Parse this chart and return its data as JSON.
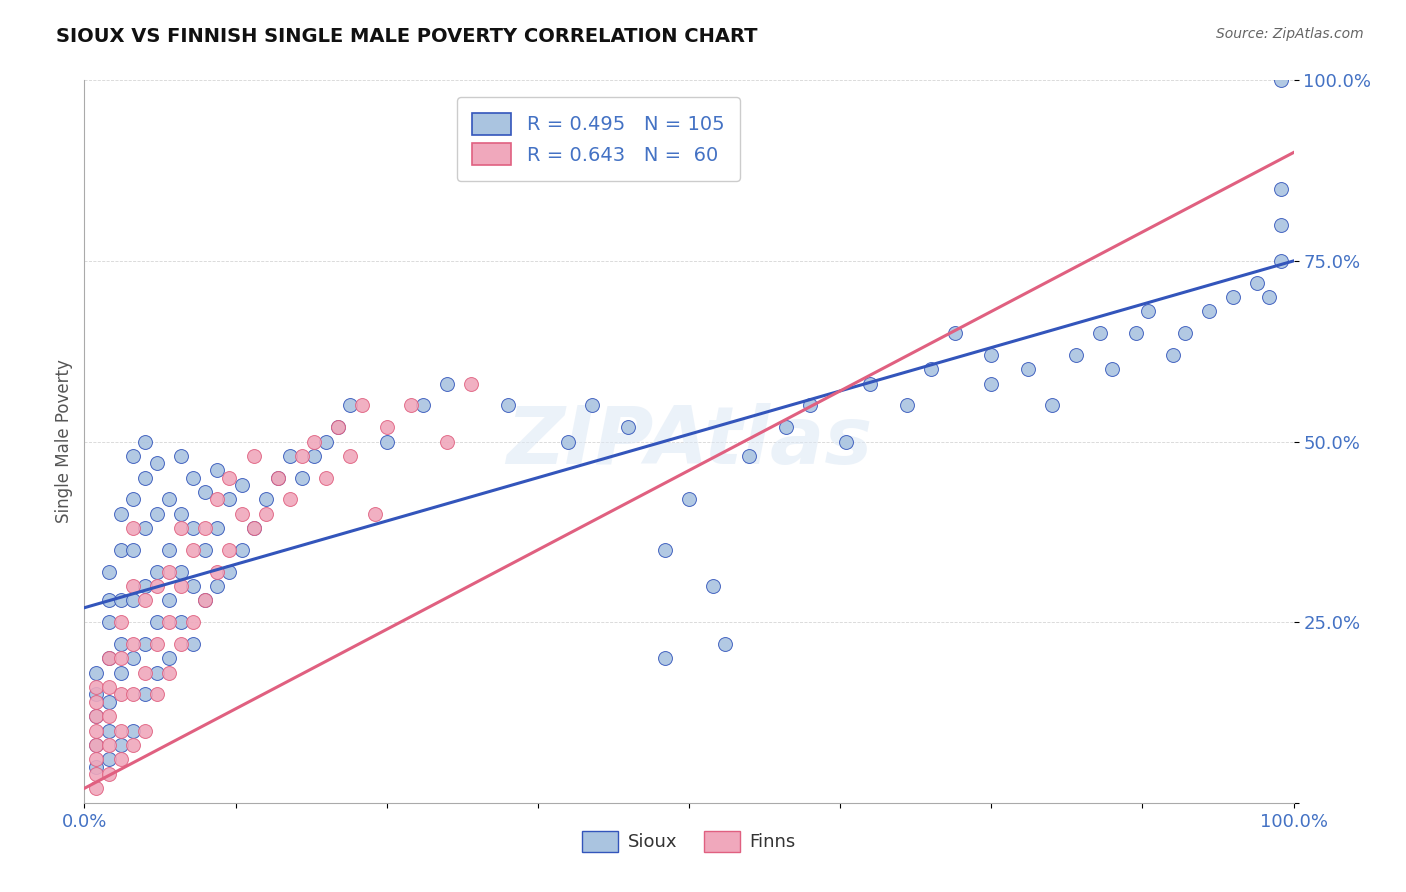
{
  "title": "SIOUX VS FINNISH SINGLE MALE POVERTY CORRELATION CHART",
  "source": "Source: ZipAtlas.com",
  "ylabel": "Single Male Poverty",
  "sioux_color": "#aac4e0",
  "finns_color": "#f0a8bc",
  "sioux_line_color": "#3355bb",
  "finns_line_color": "#e06080",
  "background_color": "#ffffff",
  "axis_label_color": "#4472c4",
  "legend_sioux_R": "R = 0.495",
  "legend_sioux_N": "N = 105",
  "legend_finns_R": "R = 0.643",
  "legend_finns_N": "N =  60",
  "sioux_points": [
    [
      0.01,
      0.05
    ],
    [
      0.01,
      0.08
    ],
    [
      0.01,
      0.12
    ],
    [
      0.01,
      0.15
    ],
    [
      0.01,
      0.18
    ],
    [
      0.02,
      0.06
    ],
    [
      0.02,
      0.1
    ],
    [
      0.02,
      0.14
    ],
    [
      0.02,
      0.2
    ],
    [
      0.02,
      0.25
    ],
    [
      0.02,
      0.28
    ],
    [
      0.02,
      0.32
    ],
    [
      0.03,
      0.08
    ],
    [
      0.03,
      0.18
    ],
    [
      0.03,
      0.22
    ],
    [
      0.03,
      0.28
    ],
    [
      0.03,
      0.35
    ],
    [
      0.03,
      0.4
    ],
    [
      0.04,
      0.1
    ],
    [
      0.04,
      0.2
    ],
    [
      0.04,
      0.28
    ],
    [
      0.04,
      0.35
    ],
    [
      0.04,
      0.42
    ],
    [
      0.04,
      0.48
    ],
    [
      0.05,
      0.15
    ],
    [
      0.05,
      0.22
    ],
    [
      0.05,
      0.3
    ],
    [
      0.05,
      0.38
    ],
    [
      0.05,
      0.45
    ],
    [
      0.05,
      0.5
    ],
    [
      0.06,
      0.18
    ],
    [
      0.06,
      0.25
    ],
    [
      0.06,
      0.32
    ],
    [
      0.06,
      0.4
    ],
    [
      0.06,
      0.47
    ],
    [
      0.07,
      0.2
    ],
    [
      0.07,
      0.28
    ],
    [
      0.07,
      0.35
    ],
    [
      0.07,
      0.42
    ],
    [
      0.08,
      0.25
    ],
    [
      0.08,
      0.32
    ],
    [
      0.08,
      0.4
    ],
    [
      0.08,
      0.48
    ],
    [
      0.09,
      0.22
    ],
    [
      0.09,
      0.3
    ],
    [
      0.09,
      0.38
    ],
    [
      0.09,
      0.45
    ],
    [
      0.1,
      0.28
    ],
    [
      0.1,
      0.35
    ],
    [
      0.1,
      0.43
    ],
    [
      0.11,
      0.3
    ],
    [
      0.11,
      0.38
    ],
    [
      0.11,
      0.46
    ],
    [
      0.12,
      0.32
    ],
    [
      0.12,
      0.42
    ],
    [
      0.13,
      0.35
    ],
    [
      0.13,
      0.44
    ],
    [
      0.14,
      0.38
    ],
    [
      0.15,
      0.42
    ],
    [
      0.16,
      0.45
    ],
    [
      0.17,
      0.48
    ],
    [
      0.18,
      0.45
    ],
    [
      0.19,
      0.48
    ],
    [
      0.2,
      0.5
    ],
    [
      0.21,
      0.52
    ],
    [
      0.22,
      0.55
    ],
    [
      0.25,
      0.5
    ],
    [
      0.28,
      0.55
    ],
    [
      0.3,
      0.58
    ],
    [
      0.35,
      0.55
    ],
    [
      0.4,
      0.5
    ],
    [
      0.42,
      0.55
    ],
    [
      0.45,
      0.52
    ],
    [
      0.48,
      0.2
    ],
    [
      0.48,
      0.35
    ],
    [
      0.5,
      0.42
    ],
    [
      0.52,
      0.3
    ],
    [
      0.53,
      0.22
    ],
    [
      0.55,
      0.48
    ],
    [
      0.58,
      0.52
    ],
    [
      0.6,
      0.55
    ],
    [
      0.63,
      0.5
    ],
    [
      0.65,
      0.58
    ],
    [
      0.68,
      0.55
    ],
    [
      0.7,
      0.6
    ],
    [
      0.72,
      0.65
    ],
    [
      0.75,
      0.58
    ],
    [
      0.75,
      0.62
    ],
    [
      0.78,
      0.6
    ],
    [
      0.8,
      0.55
    ],
    [
      0.82,
      0.62
    ],
    [
      0.84,
      0.65
    ],
    [
      0.85,
      0.6
    ],
    [
      0.87,
      0.65
    ],
    [
      0.88,
      0.68
    ],
    [
      0.9,
      0.62
    ],
    [
      0.91,
      0.65
    ],
    [
      0.93,
      0.68
    ],
    [
      0.95,
      0.7
    ],
    [
      0.97,
      0.72
    ],
    [
      0.98,
      0.7
    ],
    [
      0.99,
      0.75
    ],
    [
      0.99,
      0.8
    ],
    [
      0.99,
      0.85
    ],
    [
      0.99,
      1.0
    ]
  ],
  "finns_points": [
    [
      0.01,
      0.02
    ],
    [
      0.01,
      0.04
    ],
    [
      0.01,
      0.06
    ],
    [
      0.01,
      0.08
    ],
    [
      0.01,
      0.1
    ],
    [
      0.01,
      0.12
    ],
    [
      0.01,
      0.14
    ],
    [
      0.01,
      0.16
    ],
    [
      0.02,
      0.04
    ],
    [
      0.02,
      0.08
    ],
    [
      0.02,
      0.12
    ],
    [
      0.02,
      0.16
    ],
    [
      0.02,
      0.2
    ],
    [
      0.03,
      0.06
    ],
    [
      0.03,
      0.1
    ],
    [
      0.03,
      0.15
    ],
    [
      0.03,
      0.2
    ],
    [
      0.03,
      0.25
    ],
    [
      0.04,
      0.08
    ],
    [
      0.04,
      0.15
    ],
    [
      0.04,
      0.22
    ],
    [
      0.04,
      0.3
    ],
    [
      0.04,
      0.38
    ],
    [
      0.05,
      0.1
    ],
    [
      0.05,
      0.18
    ],
    [
      0.05,
      0.28
    ],
    [
      0.06,
      0.15
    ],
    [
      0.06,
      0.22
    ],
    [
      0.06,
      0.3
    ],
    [
      0.07,
      0.18
    ],
    [
      0.07,
      0.25
    ],
    [
      0.07,
      0.32
    ],
    [
      0.08,
      0.22
    ],
    [
      0.08,
      0.3
    ],
    [
      0.08,
      0.38
    ],
    [
      0.09,
      0.25
    ],
    [
      0.09,
      0.35
    ],
    [
      0.1,
      0.28
    ],
    [
      0.1,
      0.38
    ],
    [
      0.11,
      0.32
    ],
    [
      0.11,
      0.42
    ],
    [
      0.12,
      0.35
    ],
    [
      0.12,
      0.45
    ],
    [
      0.13,
      0.4
    ],
    [
      0.14,
      0.38
    ],
    [
      0.14,
      0.48
    ],
    [
      0.15,
      0.4
    ],
    [
      0.16,
      0.45
    ],
    [
      0.17,
      0.42
    ],
    [
      0.18,
      0.48
    ],
    [
      0.19,
      0.5
    ],
    [
      0.2,
      0.45
    ],
    [
      0.21,
      0.52
    ],
    [
      0.22,
      0.48
    ],
    [
      0.23,
      0.55
    ],
    [
      0.24,
      0.4
    ],
    [
      0.25,
      0.52
    ],
    [
      0.27,
      0.55
    ],
    [
      0.3,
      0.5
    ],
    [
      0.32,
      0.58
    ]
  ],
  "sioux_line_intercept": 0.27,
  "sioux_line_slope": 0.48,
  "finns_line_intercept": 0.02,
  "finns_line_slope": 0.88
}
